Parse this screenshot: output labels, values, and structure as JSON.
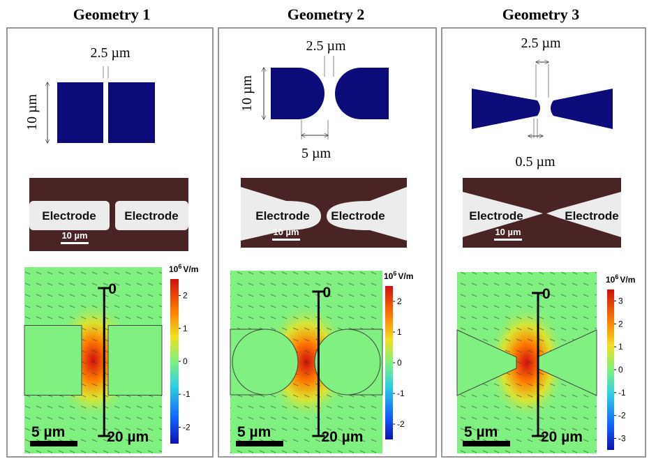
{
  "panels": [
    {
      "title": "Geometry 1",
      "schematic": {
        "gap": "2.5 µm",
        "height": "10 µm"
      },
      "micrograph": {
        "left": "Electrode",
        "right": "Electrode",
        "scale": "10 µm"
      },
      "simulation": {
        "ruler_top": "0",
        "ruler_bottom": "20 µm",
        "scale": "5 µm",
        "colorbar": {
          "base": "10",
          "exponent": "6",
          "unit": "V/m",
          "ticks": [
            2,
            1,
            0,
            -1,
            -2
          ]
        }
      }
    },
    {
      "title": "Geometry 2",
      "schematic": {
        "gap": "2.5 µm",
        "height": "10 µm",
        "width": "5 µm"
      },
      "micrograph": {
        "left": "Electrode",
        "right": "Electrode",
        "scale": "10 µm"
      },
      "simulation": {
        "ruler_top": "0",
        "ruler_bottom": "20 µm",
        "scale": "5 µm",
        "colorbar": {
          "base": "10",
          "exponent": "6",
          "unit": "V/m",
          "ticks": [
            2,
            1,
            0,
            -1,
            -2
          ]
        }
      }
    },
    {
      "title": "Geometry 3",
      "schematic": {
        "gap": "2.5 µm",
        "tip": "0.5 µm"
      },
      "micrograph": {
        "left": "Electrode",
        "right": "Electrode",
        "scale": "10 µm"
      },
      "simulation": {
        "ruler_top": "0",
        "ruler_bottom": "20 µm",
        "scale": "5 µm",
        "colorbar": {
          "base": "10",
          "exponent": "6",
          "unit": "V/m",
          "ticks": [
            3,
            2,
            1,
            0,
            -1,
            -2,
            -3
          ]
        }
      }
    }
  ]
}
